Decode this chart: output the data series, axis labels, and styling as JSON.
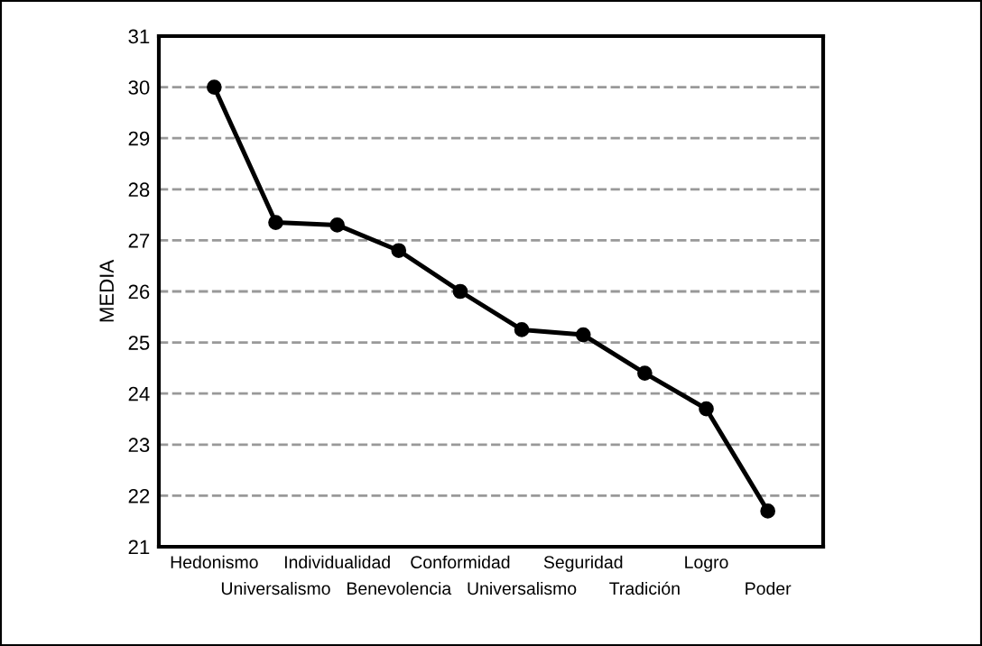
{
  "chart_data": {
    "type": "line",
    "ylabel": "MEDIA",
    "categories": [
      "Hedonismo",
      "Universalismo",
      "Individualidad",
      "Benevolencia",
      "Conformidad",
      "Universalismo",
      "Seguridad",
      "Tradición",
      "Logro",
      "Poder"
    ],
    "series": [
      {
        "color": "#000000",
        "values": [
          30.0,
          27.35,
          27.3,
          26.8,
          26.0,
          25.25,
          25.15,
          24.4,
          23.7,
          21.7
        ]
      }
    ],
    "ylim": [
      21,
      31
    ],
    "yticks": [
      21,
      22,
      23,
      24,
      25,
      26,
      27,
      28,
      29,
      30,
      31
    ],
    "grid": "y",
    "marker": "circle",
    "line_style": "solid",
    "legend": false
  }
}
